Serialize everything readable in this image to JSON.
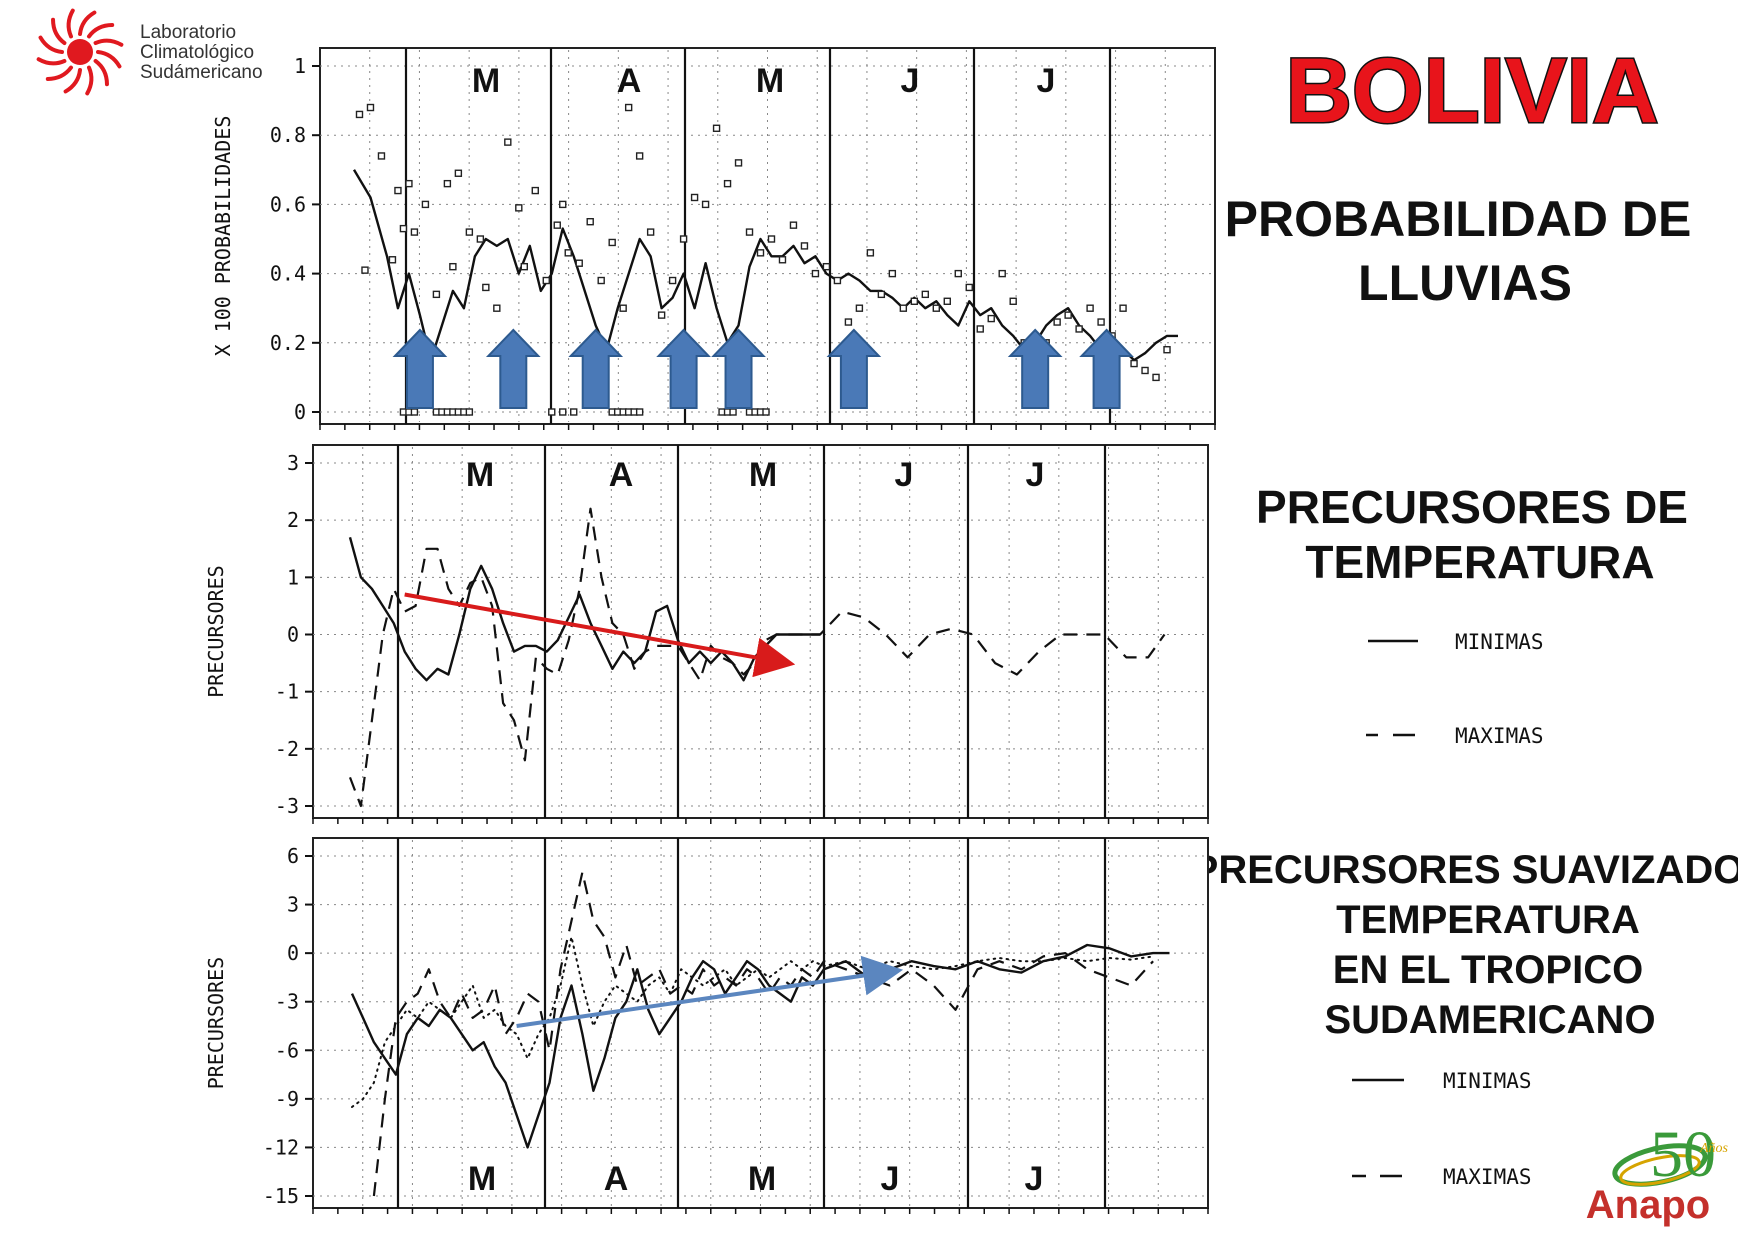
{
  "header": {
    "org_line1": "Laboratorio",
    "org_line2": "Climatológico",
    "org_line3": "Sudámericano",
    "country": "BOLIVIA"
  },
  "right_panel": {
    "rain_title_1": "PROBABILIDAD DE",
    "rain_title_2": "LLUVIAS",
    "temp_title_1": "PRECURSORES DE",
    "temp_title_2": "TEMPERATURA",
    "legend1_min": "MINIMAS",
    "legend1_max": "MAXIMAS",
    "smooth_title_1": "PRECURSORES SUAVIZADO",
    "smooth_title_2": "TEMPERATURA",
    "smooth_title_3": "EN  EL  TROPICO",
    "smooth_title_4": "SUDAMERICANO",
    "legend2_min": "MINIMAS",
    "legend2_max": "MAXIMAS"
  },
  "footer_logo": {
    "years": "50",
    "years_suffix": "Años",
    "brand": "Anapo"
  },
  "colors": {
    "country_red": "#e8141b",
    "trend_red": "#d81b1b",
    "trend_blue": "#5b86bf",
    "arrow_blue": "#4a79b7",
    "logo_red": "#e0191f",
    "anapo_green": "#3a9a3a",
    "anapo_gold": "#d6a400",
    "anapo_red": "#c4302b"
  },
  "chart_data": [
    {
      "type": "line",
      "ylabel": "X 100 PROBABILIDADES",
      "ylim": [
        0,
        1
      ],
      "yticks": [
        "0",
        "0.2",
        "0.4",
        "0.6",
        "0.8",
        "1"
      ],
      "months": [
        "M",
        "A",
        "M",
        "J",
        "J"
      ],
      "series": [
        {
          "style": "solid",
          "x": [
            0,
            3,
            6,
            8,
            10,
            12,
            14,
            16,
            18,
            20,
            22,
            24,
            26,
            28,
            30,
            32,
            34,
            36,
            38,
            40,
            42,
            44,
            46,
            48,
            50,
            52,
            54,
            56,
            58,
            60,
            62,
            64,
            66,
            68,
            70,
            72,
            74,
            76,
            78,
            80,
            82,
            84,
            86,
            88,
            90,
            92,
            94,
            96,
            98,
            100,
            102,
            104,
            106,
            108,
            110,
            112,
            114,
            116,
            118,
            120,
            122,
            124,
            126,
            128,
            130,
            132,
            134,
            136,
            138,
            140,
            142,
            144,
            146,
            148,
            150
          ],
          "y": [
            0.7,
            0.62,
            0.45,
            0.3,
            0.4,
            0.28,
            0.15,
            0.25,
            0.35,
            0.3,
            0.45,
            0.5,
            0.48,
            0.5,
            0.4,
            0.48,
            0.35,
            0.4,
            0.53,
            0.45,
            0.35,
            0.25,
            0.18,
            0.3,
            0.4,
            0.5,
            0.45,
            0.3,
            0.33,
            0.4,
            0.3,
            0.43,
            0.3,
            0.2,
            0.25,
            0.42,
            0.5,
            0.45,
            0.45,
            0.48,
            0.43,
            0.45,
            0.4,
            0.38,
            0.4,
            0.38,
            0.35,
            0.35,
            0.33,
            0.3,
            0.33,
            0.3,
            0.32,
            0.28,
            0.25,
            0.32,
            0.28,
            0.3,
            0.25,
            0.22,
            0.18,
            0.2,
            0.25,
            0.28,
            0.3,
            0.25,
            0.22,
            0.18,
            0.2,
            0.18,
            0.15,
            0.17,
            0.2,
            0.22,
            0.22
          ]
        },
        {
          "style": "points",
          "x": [
            1,
            2,
            3,
            5,
            7,
            8,
            9,
            10,
            11,
            13,
            15,
            17,
            18,
            19,
            21,
            23,
            24,
            26,
            28,
            30,
            31,
            33,
            35,
            37,
            38,
            39,
            41,
            43,
            45,
            47,
            49,
            50,
            52,
            54,
            56,
            58,
            60,
            62,
            64,
            66,
            68,
            70,
            72,
            74,
            76,
            78,
            80,
            82,
            84,
            86,
            88,
            90,
            92,
            94,
            96,
            98,
            100,
            102,
            104,
            106,
            108,
            110,
            112,
            114,
            116,
            118,
            120,
            122,
            124,
            126,
            128,
            130,
            132,
            134,
            136,
            138,
            140,
            142,
            144,
            146,
            148
          ],
          "y": [
            0.86,
            0.41,
            0.88,
            0.74,
            0.44,
            0.64,
            0.53,
            0.66,
            0.52,
            0.6,
            0.34,
            0.66,
            0.42,
            0.69,
            0.52,
            0.5,
            0.36,
            0.3,
            0.78,
            0.59,
            0.42,
            0.64,
            0.38,
            0.54,
            0.6,
            0.46,
            0.43,
            0.55,
            0.38,
            0.49,
            0.3,
            0.88,
            0.74,
            0.52,
            0.28,
            0.38,
            0.5,
            0.62,
            0.6,
            0.82,
            0.66,
            0.72,
            0.52,
            0.46,
            0.5,
            0.44,
            0.54,
            0.48,
            0.4,
            0.42,
            0.38,
            0.26,
            0.3,
            0.46,
            0.34,
            0.4,
            0.3,
            0.32,
            0.34,
            0.3,
            0.32,
            0.4,
            0.36,
            0.24,
            0.27,
            0.4,
            0.32,
            0.2,
            0.18,
            0.2,
            0.26,
            0.28,
            0.24,
            0.3,
            0.26,
            0.22,
            0.3,
            0.14,
            0.12,
            0.1,
            0.18
          ]
        },
        {
          "style": "zero-points",
          "x": [
            9,
            10,
            11,
            15,
            16,
            17,
            18,
            19,
            20,
            21,
            36,
            38,
            40,
            47,
            48,
            49,
            50,
            51,
            52,
            67,
            68,
            69,
            72,
            73,
            74,
            75
          ],
          "y": [
            0,
            0,
            0,
            0,
            0,
            0,
            0,
            0,
            0,
            0,
            0,
            0,
            0,
            0,
            0,
            0,
            0,
            0,
            0,
            0,
            0,
            0,
            0,
            0,
            0,
            0
          ]
        }
      ],
      "arrows_at_x": [
        12,
        29,
        44,
        60,
        70,
        91,
        124,
        137
      ]
    },
    {
      "type": "line",
      "ylabel": "PRECURSORES",
      "ylim": [
        -3,
        3
      ],
      "yticks": [
        "-3",
        "-2",
        "-1",
        "0",
        "1",
        "2",
        "3"
      ],
      "months": [
        "M",
        "A",
        "M",
        "J",
        "J"
      ],
      "series": [
        {
          "name": "MINIMAS",
          "style": "solid",
          "x": [
            0,
            2,
            4,
            6,
            8,
            10,
            12,
            14,
            16,
            18,
            20,
            22,
            24,
            26,
            28,
            30,
            32,
            34,
            36,
            38,
            40,
            42,
            44,
            46,
            48,
            50,
            52,
            54,
            56,
            58,
            60,
            62,
            64,
            66,
            68,
            70,
            72,
            74,
            76,
            78,
            80,
            82,
            84,
            86
          ],
          "y": [
            1.7,
            1.0,
            0.8,
            0.5,
            0.2,
            -0.3,
            -0.6,
            -0.8,
            -0.6,
            -0.7,
            0.0,
            0.8,
            1.2,
            0.8,
            0.2,
            -0.3,
            -0.2,
            -0.2,
            -0.3,
            -0.1,
            0.3,
            0.7,
            0.2,
            -0.2,
            -0.6,
            -0.3,
            -0.5,
            -0.3,
            0.4,
            0.5,
            -0.1,
            -0.5,
            -0.3,
            -0.5,
            -0.3,
            -0.5,
            -0.8,
            -0.4,
            -0.2,
            0.0,
            0.0,
            0.0,
            0.0,
            0.0
          ]
        },
        {
          "name": "MAXIMAS",
          "style": "dashed",
          "x": [
            0,
            2,
            4,
            6,
            8,
            10,
            12,
            14,
            16,
            18,
            20,
            22,
            24,
            26,
            28,
            30,
            32,
            34,
            36,
            38,
            40,
            42,
            44,
            46,
            48,
            50,
            52,
            54,
            56,
            58,
            60,
            62,
            64,
            66,
            68,
            70,
            72,
            74,
            76,
            78,
            80,
            82,
            84,
            86,
            90,
            94,
            98,
            102,
            106,
            110,
            114,
            118,
            122,
            126,
            130,
            134,
            138,
            142,
            146,
            149
          ],
          "y": [
            -2.5,
            -3.0,
            -1.5,
            0.0,
            0.8,
            0.4,
            0.5,
            1.5,
            1.5,
            0.8,
            0.5,
            0.9,
            1.0,
            0.5,
            -1.2,
            -1.5,
            -2.2,
            -0.4,
            -0.6,
            -0.7,
            -0.1,
            0.8,
            2.2,
            1.0,
            0.2,
            0.0,
            -0.6,
            -0.3,
            -0.2,
            -0.2,
            -0.2,
            -0.5,
            -0.8,
            -0.2,
            -0.4,
            -0.5,
            -0.7,
            -0.5,
            -0.1,
            0.0,
            0.0,
            0.0,
            0.0,
            0.0,
            0.4,
            0.3,
            0.0,
            -0.4,
            0.0,
            0.1,
            0.0,
            -0.5,
            -0.7,
            -0.3,
            0.0,
            0.0,
            0.0,
            -0.4,
            -0.4,
            0.0
          ]
        }
      ],
      "trend_arrow": {
        "from": [
          10,
          0.7
        ],
        "to": [
          80,
          -0.5
        ]
      }
    },
    {
      "type": "line",
      "ylabel": "PRECURSORES",
      "ylim": [
        -15,
        6
      ],
      "yticks": [
        "-15",
        "-12",
        "-9",
        "-6",
        "-3",
        "0",
        "3",
        "6"
      ],
      "months": [
        "M",
        "A",
        "M",
        "J",
        "J"
      ],
      "series": [
        {
          "name": "MINIMAS",
          "style": "solid",
          "x": [
            0,
            2,
            4,
            6,
            8,
            10,
            12,
            14,
            16,
            18,
            20,
            22,
            24,
            26,
            28,
            30,
            32,
            34,
            36,
            38,
            40,
            42,
            44,
            46,
            48,
            50,
            52,
            54,
            56,
            58,
            60,
            62,
            64,
            66,
            68,
            70,
            72,
            74,
            76,
            78,
            80,
            82,
            84,
            86,
            90,
            94,
            98,
            102,
            106,
            110,
            114,
            118,
            122,
            126,
            130,
            134,
            138,
            142,
            146,
            149
          ],
          "y": [
            -2.5,
            -4.0,
            -5.5,
            -6.5,
            -7.5,
            -5.0,
            -4.0,
            -4.5,
            -3.5,
            -4.0,
            -5.0,
            -6.0,
            -5.5,
            -7.0,
            -8.0,
            -10.0,
            -12.0,
            -10.0,
            -8.0,
            -4.0,
            -2.0,
            -5.0,
            -8.5,
            -6.5,
            -4.0,
            -3.0,
            -1.0,
            -3.5,
            -5.0,
            -4.0,
            -3.0,
            -1.5,
            -0.5,
            -1.0,
            -2.5,
            -1.5,
            -0.5,
            -1.0,
            -2.0,
            -2.5,
            -3.0,
            -1.5,
            -2.0,
            -1.0,
            -0.5,
            -1.5,
            -1.0,
            -0.5,
            -0.8,
            -1.0,
            -0.5,
            -1.0,
            -1.2,
            -0.5,
            -0.2,
            0.5,
            0.3,
            -0.2,
            0.0,
            0.0
          ]
        },
        {
          "name": "MAXIMAS",
          "style": "dashed",
          "x": [
            4,
            6,
            8,
            10,
            12,
            14,
            16,
            18,
            20,
            22,
            24,
            26,
            28,
            30,
            32,
            34,
            36,
            38,
            40,
            42,
            44,
            46,
            48,
            50,
            52,
            54,
            56,
            58,
            60,
            62,
            64,
            66,
            68,
            70,
            72,
            74,
            76,
            78,
            80,
            82,
            84,
            86,
            90,
            94,
            98,
            102,
            106,
            110,
            114,
            118,
            122,
            126,
            130,
            134,
            138,
            142,
            146
          ],
          "y": [
            -15.0,
            -9.0,
            -4.0,
            -3.0,
            -2.5,
            -1.0,
            -3.0,
            -4.0,
            -2.5,
            -4.0,
            -3.5,
            -2.0,
            -5.0,
            -4.0,
            -2.5,
            -3.0,
            -6.0,
            -1.0,
            2.0,
            5.0,
            2.0,
            1.0,
            -1.5,
            0.5,
            -2.0,
            -1.5,
            -1.0,
            -2.5,
            -2.0,
            -2.5,
            -1.0,
            -2.0,
            -1.5,
            -2.0,
            -1.0,
            -1.5,
            -2.5,
            -1.5,
            -2.0,
            -1.0,
            -1.5,
            -0.5,
            -1.0,
            -1.5,
            -2.0,
            -1.0,
            -2.0,
            -3.5,
            -1.0,
            -0.5,
            -1.0,
            -0.2,
            0.0,
            -1.0,
            -1.5,
            -2.0,
            -0.5
          ]
        },
        {
          "style": "dotted",
          "x": [
            0,
            2,
            4,
            6,
            8,
            10,
            12,
            14,
            16,
            18,
            20,
            22,
            24,
            26,
            28,
            30,
            32,
            34,
            36,
            38,
            40,
            42,
            44,
            46,
            48,
            50,
            52,
            54,
            56,
            58,
            60,
            62,
            64,
            66,
            68,
            70,
            72,
            74,
            76,
            78,
            80,
            82,
            84,
            86,
            90,
            94,
            98,
            102,
            106,
            110,
            114,
            118,
            122,
            126,
            130,
            134,
            138,
            142,
            146
          ],
          "y": [
            -9.5,
            -9.0,
            -8.0,
            -5.5,
            -4.5,
            -3.5,
            -4.0,
            -3.0,
            -3.5,
            -4.0,
            -3.0,
            -2.0,
            -4.0,
            -3.5,
            -4.5,
            -5.0,
            -6.5,
            -5.0,
            -4.0,
            -2.0,
            1.0,
            -2.0,
            -4.5,
            -3.0,
            -2.0,
            -2.5,
            -3.0,
            -2.0,
            -1.5,
            -2.5,
            -1.0,
            -1.5,
            -2.0,
            -1.5,
            -1.0,
            -2.0,
            -1.5,
            -1.0,
            -1.5,
            -1.0,
            -0.5,
            -1.0,
            -0.5,
            -0.8,
            -0.5,
            -1.0,
            -0.5,
            -0.8,
            -1.0,
            -0.8,
            -0.5,
            -0.3,
            -0.5,
            -0.5,
            -0.3,
            -0.5,
            -0.3,
            -0.4,
            -0.2
          ]
        }
      ],
      "trend_arrow": {
        "from": [
          30,
          -4.5
        ],
        "to": [
          99,
          -1.1
        ]
      }
    }
  ]
}
